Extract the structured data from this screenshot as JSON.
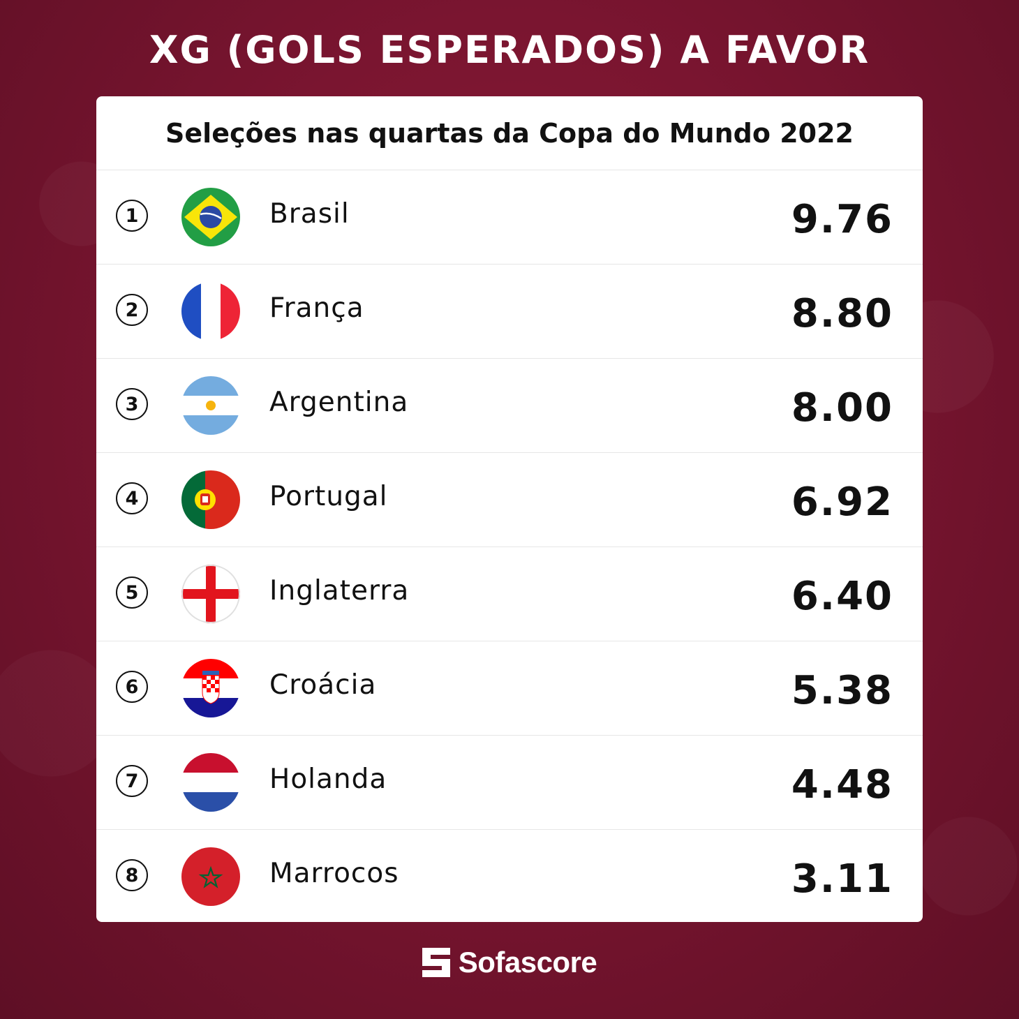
{
  "title": "XG (GOLS ESPERADOS) A FAVOR",
  "subtitle": "Seleções nas quartas da Copa do Mundo 2022",
  "brand": "Sofascore",
  "colors": {
    "background": "#7a1530",
    "card": "#ffffff",
    "text": "#111111"
  },
  "chart_data": {
    "type": "table",
    "title": "XG (GOLS ESPERADOS) A FAVOR",
    "subtitle": "Seleções nas quartas da Copa do Mundo 2022",
    "columns": [
      "rank",
      "team",
      "xg"
    ],
    "rows": [
      {
        "rank": "1",
        "team": "Brasil",
        "value": "9.76",
        "flag": "brazil-flag-icon"
      },
      {
        "rank": "2",
        "team": "França",
        "value": "8.80",
        "flag": "france-flag-icon"
      },
      {
        "rank": "3",
        "team": "Argentina",
        "value": "8.00",
        "flag": "argentina-flag-icon"
      },
      {
        "rank": "4",
        "team": "Portugal",
        "value": "6.92",
        "flag": "portugal-flag-icon"
      },
      {
        "rank": "5",
        "team": "Inglaterra",
        "value": "6.40",
        "flag": "england-flag-icon"
      },
      {
        "rank": "6",
        "team": "Croácia",
        "value": "5.38",
        "flag": "croatia-flag-icon"
      },
      {
        "rank": "7",
        "team": "Holanda",
        "value": "4.48",
        "flag": "netherlands-flag-icon"
      },
      {
        "rank": "8",
        "team": "Marrocos",
        "value": "3.11",
        "flag": "morocco-flag-icon"
      }
    ]
  }
}
